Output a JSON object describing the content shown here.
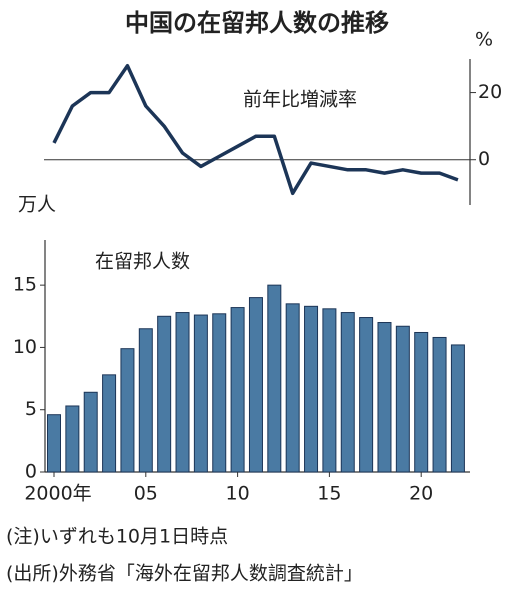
{
  "title": "中国の在留邦人数の推移",
  "chart_data": [
    {
      "type": "line",
      "title": "前年比増減率",
      "unit": "%",
      "color": "#1c3557",
      "values": [
        5,
        16,
        20,
        20,
        28,
        16,
        10,
        2,
        -2,
        1,
        4,
        7,
        7,
        -10,
        -1,
        -2,
        -3,
        -3,
        -4,
        -3,
        -4,
        -4,
        -6
      ],
      "ylim": [
        -12,
        30
      ],
      "yticks": [
        0,
        20
      ],
      "axis": "right"
    },
    {
      "type": "bar",
      "title": "在留邦人数",
      "unit": "万人",
      "color": "#4a7aa3",
      "categories": [
        "2000年",
        null,
        null,
        null,
        null,
        "05",
        null,
        null,
        null,
        null,
        "10",
        null,
        null,
        null,
        null,
        "15",
        null,
        null,
        null,
        null,
        "20",
        null,
        null
      ],
      "values": [
        4.6,
        5.3,
        6.4,
        7.8,
        9.9,
        11.5,
        12.5,
        12.8,
        12.6,
        12.7,
        13.2,
        14.0,
        15.0,
        13.5,
        13.3,
        13.1,
        12.8,
        12.4,
        12.0,
        11.7,
        11.2,
        10.8,
        10.2
      ],
      "ylim": [
        0,
        17.5
      ],
      "yticks": [
        0,
        5,
        10,
        15
      ],
      "axis": "left"
    }
  ],
  "notes": [
    "(注)いずれも10月1日時点",
    "(出所)外務省「海外在留邦人数調査統計」"
  ]
}
